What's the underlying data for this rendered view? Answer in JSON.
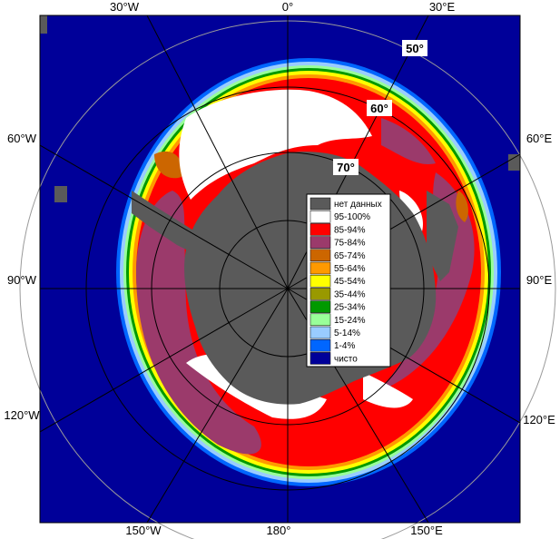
{
  "map": {
    "longitude_labels": [
      "30°W",
      "0°",
      "30°E",
      "60°W",
      "60°E",
      "90°W",
      "90°E",
      "120°W",
      "120°E",
      "150°W",
      "180°",
      "150°E"
    ],
    "latitude_labels": [
      "50°",
      "60°",
      "70°"
    ]
  },
  "legend": {
    "items": [
      {
        "label": "нет данных",
        "color": "#5a5a5a"
      },
      {
        "label": "95-100%",
        "color": "#ffffff"
      },
      {
        "label": "85-94%",
        "color": "#ff0000"
      },
      {
        "label": "75-84%",
        "color": "#9b3a6b"
      },
      {
        "label": "65-74%",
        "color": "#cc6600"
      },
      {
        "label": "55-64%",
        "color": "#ff9900"
      },
      {
        "label": "45-54%",
        "color": "#ffff00"
      },
      {
        "label": "35-44%",
        "color": "#999900"
      },
      {
        "label": "25-34%",
        "color": "#009900"
      },
      {
        "label": "15-24%",
        "color": "#99ff99"
      },
      {
        "label": "5-14%",
        "color": "#99ccff"
      },
      {
        "label": "1-4%",
        "color": "#0066ff"
      },
      {
        "label": "чисто",
        "color": "#000099"
      }
    ]
  }
}
